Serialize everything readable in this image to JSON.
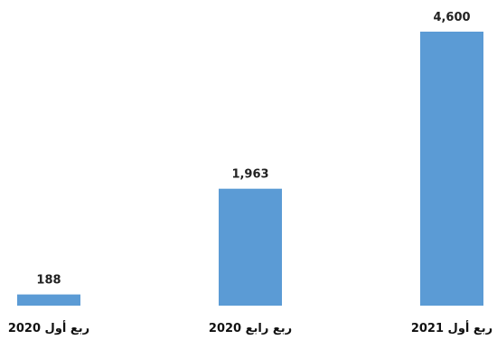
{
  "chart_data": {
    "type": "bar",
    "categories": [
      "ربع أول 2020",
      "ربع رابع 2020",
      "ربع أول 2021"
    ],
    "values": [
      188,
      1963,
      4600
    ],
    "value_labels": [
      "188",
      "1,963",
      "4,600"
    ],
    "title": "",
    "xlabel": "",
    "ylabel": "",
    "ylim": [
      0,
      4600
    ],
    "grid": false,
    "legend": "none",
    "bar_color": "#5b9bd5"
  }
}
